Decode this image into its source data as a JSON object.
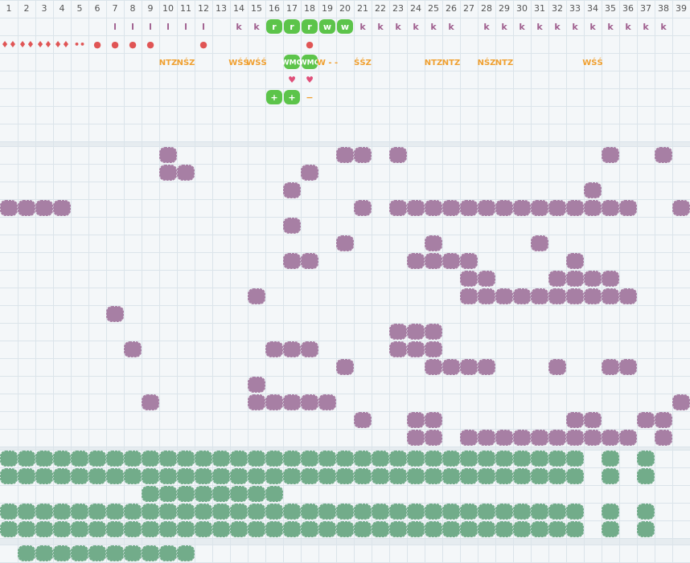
{
  "columns": [
    1,
    2,
    3,
    4,
    5,
    6,
    7,
    8,
    9,
    10,
    11,
    12,
    13,
    14,
    15,
    16,
    17,
    18,
    19,
    20,
    21,
    22,
    23,
    24,
    25,
    26,
    27,
    28,
    29,
    30,
    31,
    32,
    33,
    34,
    35,
    36,
    37,
    38,
    39
  ],
  "top_rows": [
    [
      {
        "col": 7,
        "text": "l",
        "color": "#a0608f"
      },
      {
        "col": 8,
        "text": "l",
        "color": "#a0608f"
      },
      {
        "col": 9,
        "text": "l",
        "color": "#a0608f"
      },
      {
        "col": 10,
        "text": "l",
        "color": "#a0608f"
      },
      {
        "col": 11,
        "text": "l",
        "color": "#a0608f"
      },
      {
        "col": 12,
        "text": "l",
        "color": "#a0608f"
      },
      {
        "col": 14,
        "text": "k",
        "color": "#a0608f"
      },
      {
        "col": 15,
        "text": "k",
        "color": "#a0608f"
      },
      {
        "col": 16,
        "text": "r",
        "color": "#5cc44a",
        "badge": true
      },
      {
        "col": 17,
        "text": "r",
        "color": "#5cc44a",
        "badge": true
      },
      {
        "col": 18,
        "text": "r",
        "color": "#5cc44a",
        "badge": true
      },
      {
        "col": 19,
        "text": "w",
        "color": "#5cc44a",
        "badge": true
      },
      {
        "col": 20,
        "text": "w",
        "color": "#5cc44a",
        "badge": true
      },
      {
        "col": 21,
        "text": "k",
        "color": "#a0608f"
      },
      {
        "col": 22,
        "text": "k",
        "color": "#a0608f"
      },
      {
        "col": 23,
        "text": "k",
        "color": "#a0608f"
      },
      {
        "col": 24,
        "text": "k",
        "color": "#a0608f"
      },
      {
        "col": 25,
        "text": "k",
        "color": "#a0608f"
      },
      {
        "col": 26,
        "text": "k",
        "color": "#a0608f"
      },
      {
        "col": 28,
        "text": "k",
        "color": "#a0608f"
      },
      {
        "col": 29,
        "text": "k",
        "color": "#a0608f"
      },
      {
        "col": 30,
        "text": "k",
        "color": "#a0608f"
      },
      {
        "col": 31,
        "text": "k",
        "color": "#a0608f"
      },
      {
        "col": 32,
        "text": "k",
        "color": "#a0608f"
      },
      {
        "col": 33,
        "text": "k",
        "color": "#a0608f"
      },
      {
        "col": 34,
        "text": "k",
        "color": "#a0608f"
      },
      {
        "col": 35,
        "text": "k",
        "color": "#a0608f"
      },
      {
        "col": 36,
        "text": "k",
        "color": "#a0608f"
      },
      {
        "col": 37,
        "text": "k",
        "color": "#a0608f"
      },
      {
        "col": 38,
        "text": "k",
        "color": "#a0608f"
      }
    ],
    [
      {
        "col": 1,
        "text": "♦♦",
        "color": "#e05555"
      },
      {
        "col": 2,
        "text": "♦♦",
        "color": "#e05555"
      },
      {
        "col": 3,
        "text": "♦♦",
        "color": "#e05555"
      },
      {
        "col": 4,
        "text": "♦♦",
        "color": "#e05555"
      },
      {
        "col": 5,
        "text": "••",
        "color": "#e05555"
      },
      {
        "col": 6,
        "text": "●",
        "color": "#e05555"
      },
      {
        "col": 7,
        "text": "●",
        "color": "#e05555"
      },
      {
        "col": 8,
        "text": "●",
        "color": "#e05555"
      },
      {
        "col": 9,
        "text": "●",
        "color": "#e05555"
      },
      {
        "col": 12,
        "text": "●",
        "color": "#e05555"
      },
      {
        "col": 18,
        "text": "●",
        "color": "#e05555"
      }
    ],
    [
      {
        "col": 10,
        "text": "NTZ",
        "color": "#f0a030"
      },
      {
        "col": 11,
        "text": "NŚZ",
        "color": "#f0a030"
      },
      {
        "col": 14,
        "text": "WŚŚ",
        "color": "#f0a030"
      },
      {
        "col": 15,
        "text": "WŚŚ",
        "color": "#f0a030"
      },
      {
        "col": 17,
        "text": "WMO",
        "color": "#5cc44a",
        "badge": true
      },
      {
        "col": 18,
        "text": "WMO",
        "color": "#5cc44a",
        "badge": true
      },
      {
        "col": 19,
        "text": "W - -",
        "color": "#f0a030"
      },
      {
        "col": 21,
        "text": "ŚŚZ",
        "color": "#f0a030"
      },
      {
        "col": 25,
        "text": "NTZ",
        "color": "#f0a030"
      },
      {
        "col": 26,
        "text": "NTZ",
        "color": "#f0a030"
      },
      {
        "col": 28,
        "text": "NŚZ",
        "color": "#f0a030"
      },
      {
        "col": 29,
        "text": "NTZ",
        "color": "#f0a030"
      },
      {
        "col": 34,
        "text": "WŚŚ",
        "color": "#f0a030"
      }
    ],
    [
      {
        "col": 17,
        "text": "♥",
        "color": "#e0507a"
      },
      {
        "col": 18,
        "text": "♥",
        "color": "#e0507a"
      }
    ],
    [
      {
        "col": 16,
        "text": "+",
        "color": "#5cc44a",
        "badge": true
      },
      {
        "col": 17,
        "text": "+",
        "color": "#5cc44a",
        "badge": true
      },
      {
        "col": 18,
        "text": "−",
        "color": "#f0a030"
      }
    ],
    [],
    []
  ],
  "purple_color": "#a77fa4",
  "purple_rows": [
    [
      10,
      20,
      21,
      23,
      35,
      38
    ],
    [
      10,
      11,
      18
    ],
    [
      17,
      34
    ],
    [
      1,
      2,
      3,
      4,
      21,
      23,
      24,
      25,
      26,
      27,
      28,
      29,
      30,
      31,
      32,
      33,
      34,
      35,
      36,
      39
    ],
    [
      17
    ],
    [
      20,
      25,
      31
    ],
    [
      17,
      18,
      24,
      25,
      26,
      27,
      33
    ],
    [
      27,
      28,
      32,
      33,
      34,
      35
    ],
    [
      15,
      27,
      28,
      29,
      30,
      31,
      32,
      33,
      34,
      35,
      36
    ],
    [
      7
    ],
    [
      23,
      24,
      25
    ],
    [
      8,
      16,
      17,
      18,
      23,
      24,
      25
    ],
    [
      20,
      25,
      26,
      27,
      28,
      32,
      35,
      36
    ],
    [
      15
    ],
    [
      9,
      15,
      16,
      17,
      18,
      19,
      39
    ],
    [
      21,
      24,
      25,
      33,
      34,
      37,
      38
    ],
    [
      24,
      25,
      27,
      28,
      29,
      30,
      31,
      32,
      33,
      34,
      35,
      36,
      38
    ]
  ],
  "green_color": "#72ac8a",
  "green_rows": [
    [
      1,
      2,
      3,
      4,
      5,
      6,
      7,
      8,
      9,
      10,
      11,
      12,
      13,
      14,
      15,
      16,
      17,
      18,
      19,
      20,
      21,
      22,
      23,
      24,
      25,
      26,
      27,
      28,
      29,
      30,
      31,
      32,
      33,
      35,
      37
    ],
    [
      1,
      2,
      3,
      4,
      5,
      6,
      7,
      8,
      9,
      10,
      11,
      12,
      13,
      14,
      15,
      16,
      17,
      18,
      19,
      20,
      21,
      22,
      23,
      24,
      25,
      26,
      27,
      28,
      29,
      30,
      31,
      32,
      33,
      35,
      37
    ],
    [
      9,
      10,
      11,
      12,
      13,
      14,
      15,
      16
    ],
    [
      1,
      2,
      3,
      4,
      5,
      6,
      7,
      8,
      9,
      10,
      11,
      12,
      13,
      14,
      15,
      16,
      17,
      18,
      19,
      20,
      21,
      22,
      23,
      24,
      25,
      26,
      27,
      28,
      29,
      30,
      31,
      32,
      33,
      35,
      37
    ],
    [
      1,
      2,
      3,
      4,
      5,
      6,
      7,
      8,
      9,
      10,
      11,
      12,
      13,
      14,
      15,
      16,
      17,
      18,
      19,
      20,
      21,
      22,
      23,
      24,
      25,
      26,
      27,
      28,
      29,
      30,
      31,
      32,
      33,
      35,
      37
    ]
  ],
  "bottom_row": [
    2,
    3,
    4,
    5,
    6,
    7,
    8,
    9,
    10,
    11
  ]
}
